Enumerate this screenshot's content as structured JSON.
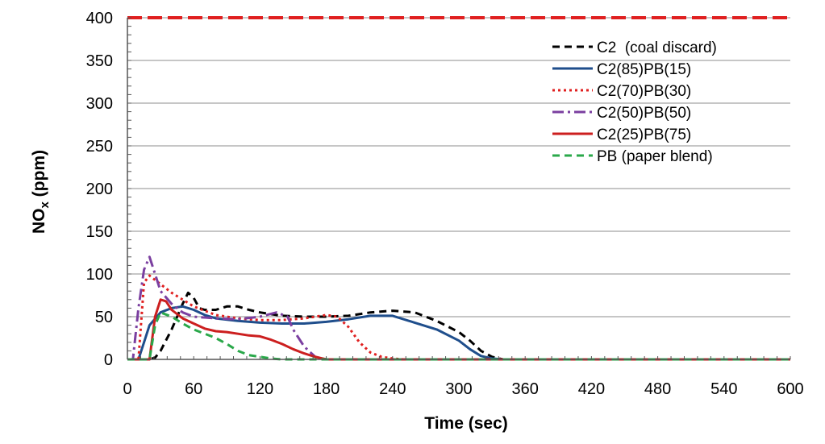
{
  "chart_data": {
    "type": "line",
    "xlabel": "Time (sec)",
    "ylabel_main": "NO",
    "ylabel_sub": "x",
    "ylabel_unit": " (ppm)",
    "xlim": [
      0,
      600
    ],
    "ylim": [
      0,
      400
    ],
    "xticks": [
      0,
      60,
      120,
      180,
      240,
      300,
      360,
      420,
      480,
      540,
      600
    ],
    "yticks": [
      0,
      50,
      100,
      150,
      200,
      250,
      300,
      350,
      400
    ],
    "grid": "horizontal",
    "legend_position": "top-right",
    "reference_line": {
      "y": 400,
      "color": "#e02020",
      "dash": "dashed"
    },
    "series": [
      {
        "name": "C2  (coal discard)",
        "color": "#000000",
        "dash": "dashed",
        "x": [
          0,
          20,
          25,
          30,
          40,
          50,
          55,
          60,
          65,
          70,
          80,
          90,
          100,
          110,
          120,
          140,
          160,
          180,
          200,
          220,
          240,
          260,
          280,
          300,
          310,
          320,
          330,
          340,
          600
        ],
        "y": [
          0,
          0,
          2,
          10,
          35,
          65,
          78,
          72,
          60,
          58,
          58,
          62,
          62,
          58,
          55,
          51,
          50,
          50,
          51,
          55,
          57,
          55,
          45,
          32,
          22,
          10,
          3,
          0,
          0
        ]
      },
      {
        "name": "C2(85)PB(15)",
        "color": "#1f4e8c",
        "dash": "solid",
        "x": [
          0,
          10,
          15,
          20,
          30,
          40,
          50,
          60,
          70,
          80,
          100,
          120,
          140,
          160,
          180,
          200,
          220,
          240,
          260,
          280,
          300,
          310,
          320,
          330,
          340,
          600
        ],
        "y": [
          0,
          0,
          20,
          40,
          55,
          60,
          62,
          58,
          52,
          48,
          45,
          43,
          42,
          42,
          44,
          47,
          51,
          51,
          43,
          35,
          22,
          12,
          4,
          1,
          0,
          0
        ]
      },
      {
        "name": "C2(70)PB(30)",
        "color": "#e02020",
        "dash": "dotted",
        "x": [
          0,
          10,
          15,
          20,
          30,
          40,
          60,
          80,
          100,
          120,
          140,
          160,
          180,
          190,
          200,
          210,
          220,
          230,
          240,
          250,
          600
        ],
        "y": [
          0,
          0,
          90,
          98,
          88,
          78,
          62,
          52,
          48,
          46,
          46,
          48,
          52,
          50,
          38,
          20,
          8,
          3,
          1,
          0,
          0
        ]
      },
      {
        "name": "C2(50)PB(50)",
        "color": "#7b3fa0",
        "dash": "dashdot",
        "x": [
          0,
          5,
          10,
          15,
          20,
          25,
          30,
          40,
          50,
          60,
          80,
          100,
          120,
          135,
          145,
          150,
          160,
          170,
          180,
          600
        ],
        "y": [
          0,
          0,
          60,
          105,
          120,
          100,
          80,
          65,
          55,
          50,
          48,
          47,
          50,
          55,
          50,
          35,
          15,
          3,
          0,
          0
        ]
      },
      {
        "name": "C2(25)PB(75)",
        "color": "#cc1f1f",
        "dash": "solid",
        "x": [
          0,
          20,
          25,
          30,
          35,
          40,
          50,
          60,
          70,
          80,
          90,
          100,
          110,
          120,
          130,
          140,
          150,
          160,
          170,
          180,
          600
        ],
        "y": [
          0,
          0,
          50,
          70,
          68,
          58,
          48,
          42,
          36,
          33,
          32,
          30,
          28,
          27,
          23,
          18,
          12,
          7,
          3,
          0,
          0
        ]
      },
      {
        "name": "PB (paper blend)",
        "color": "#2aa84a",
        "dash": "dashed",
        "x": [
          0,
          20,
          25,
          30,
          40,
          50,
          60,
          70,
          80,
          90,
          100,
          110,
          120,
          130,
          140,
          160,
          600
        ],
        "y": [
          0,
          0,
          40,
          55,
          50,
          42,
          35,
          30,
          25,
          18,
          10,
          5,
          3,
          1,
          0,
          0,
          0
        ]
      }
    ]
  }
}
